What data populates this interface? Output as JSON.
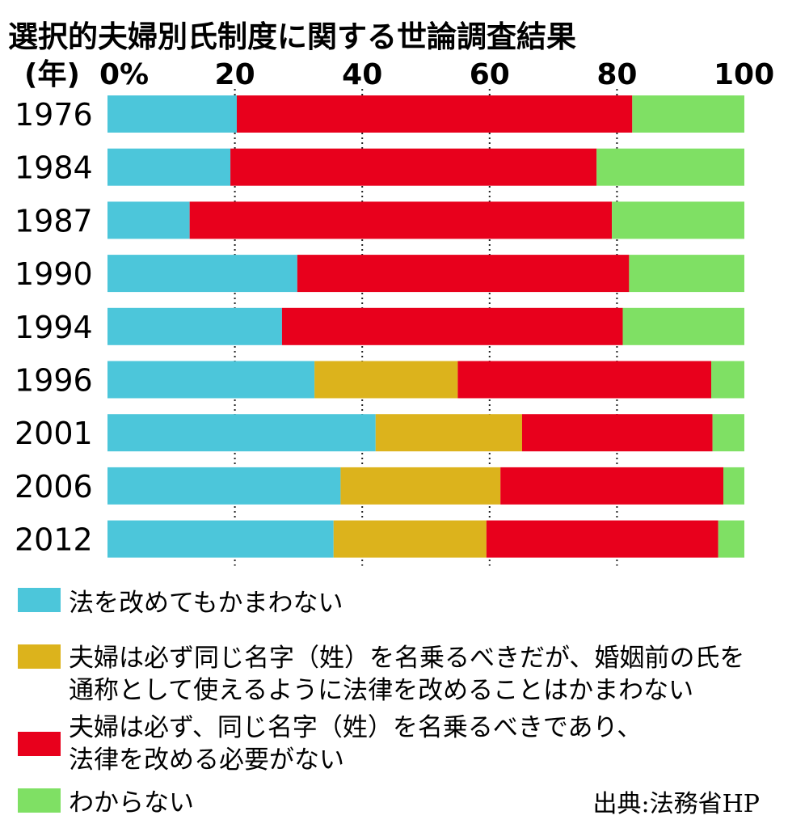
{
  "chart_data": {
    "type": "bar",
    "orientation": "horizontal",
    "stacked": true,
    "title": "選択的夫婦別氏制度に関する世論調査結果",
    "ylabel": "(年)",
    "xlim": [
      0,
      100
    ],
    "xtick_labels": [
      "0%",
      "20",
      "40",
      "60",
      "80",
      "100"
    ],
    "xticks": [
      0,
      20,
      40,
      60,
      80,
      100
    ],
    "grid": "vertical dotted at 20/40/60/80",
    "categories": [
      "1976",
      "1984",
      "1987",
      "1990",
      "1994",
      "1996",
      "2001",
      "2006",
      "2012"
    ],
    "series": [
      {
        "name": "法を改めてもかまわない",
        "color": "#4cc6da",
        "values": [
          20.3,
          19.3,
          12.9,
          29.8,
          27.4,
          32.5,
          42.1,
          36.6,
          35.5
        ]
      },
      {
        "name": "夫婦は必ず同じ名字（姓）を名乗るべきだが、婚姻前の氏を通称として使えるように法律を改めることはかまわない",
        "color": "#dcb31c",
        "values": [
          0,
          0,
          0,
          0,
          0,
          22.5,
          23.0,
          25.1,
          24.0
        ]
      },
      {
        "name": "夫婦は必ず、同じ名字（姓）を名乗るべきであり、法律を改める必要がない",
        "color": "#e8001c",
        "values": [
          62.1,
          57.5,
          66.3,
          52.1,
          53.5,
          39.8,
          29.9,
          35.0,
          36.4
        ]
      },
      {
        "name": "わからない",
        "color": "#7fe064",
        "values": [
          17.6,
          23.2,
          20.8,
          18.1,
          19.1,
          5.2,
          5.0,
          3.3,
          4.1
        ]
      }
    ],
    "legend_position": "bottom",
    "legend_lines": [
      [
        "法を改めてもかまわない"
      ],
      [
        "夫婦は必ず同じ名字（姓）を名乗るべきだが、婚姻前の氏を",
        "通称として使えるように法律を改めることはかまわない"
      ],
      [
        "夫婦は必ず、同じ名字（姓）を名乗るべきであり、",
        "法律を改める必要がない"
      ],
      [
        "わからない"
      ]
    ],
    "source": "出典:法務省HP"
  }
}
